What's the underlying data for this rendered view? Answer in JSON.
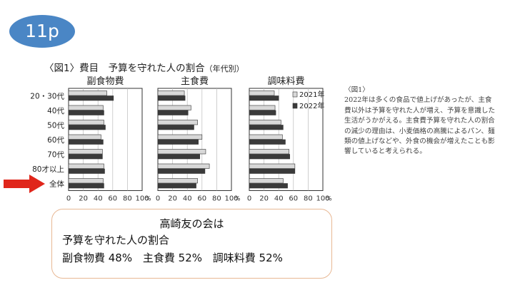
{
  "page_label": "11p",
  "figure": {
    "title": "〈図1〉費目　予算を守れた人の割合",
    "subtitle": "（年代別）"
  },
  "chart_data": {
    "type": "bar",
    "orientation": "horizontal",
    "categories": [
      "20・30代",
      "40代",
      "50代",
      "60代",
      "70代",
      "80才以上",
      "全体"
    ],
    "legend": [
      "2021年",
      "2022年"
    ],
    "legend_position": "right",
    "colors": {
      "2021年": "#d8d8d8",
      "2022年": "#3a3a3a"
    },
    "xlim": [
      0,
      100
    ],
    "x_ticks": [
      "0",
      "20",
      "40",
      "60",
      "80",
      "100"
    ],
    "x_unit": "%",
    "grid": true,
    "panels": [
      {
        "title": "副食物費",
        "series": [
          {
            "name": "2021年",
            "values": [
              52,
              47,
              48,
              44,
              46,
              48,
              47
            ]
          },
          {
            "name": "2022年",
            "values": [
              61,
              48,
              50,
              47,
              46,
              49,
              48
            ]
          }
        ]
      },
      {
        "title": "主食費",
        "series": [
          {
            "name": "2021年",
            "values": [
              36,
              45,
              54,
              60,
              65,
              70,
              54
            ]
          },
          {
            "name": "2022年",
            "values": [
              37,
              41,
              49,
              55,
              57,
              64,
              52
            ]
          }
        ]
      },
      {
        "title": "調味料費",
        "series": [
          {
            "name": "2021年",
            "values": [
              34,
              35,
              43,
              45,
              54,
              62,
              46
            ]
          },
          {
            "name": "2022年",
            "values": [
              40,
              36,
              46,
              49,
              55,
              62,
              52
            ]
          }
        ]
      }
    ]
  },
  "note": {
    "title": "〈図1〉",
    "body": "2022年は多くの食品で値上げがあったが、主食費以外は予算を守れた人が増え、予算を意識した生活がうかがえる。主食費予算を守れた人の割合の減少の理由は、小麦価格の高騰によるパン、麺類の値上げなどや、外食の機会が増えたことも影響していると考えられる。"
  },
  "summary": {
    "title": "高崎友の会は",
    "line1": "予算を守れた人の割合",
    "items": [
      "副食物費 48%",
      "主食費 52%",
      "調味料費 52%"
    ]
  }
}
